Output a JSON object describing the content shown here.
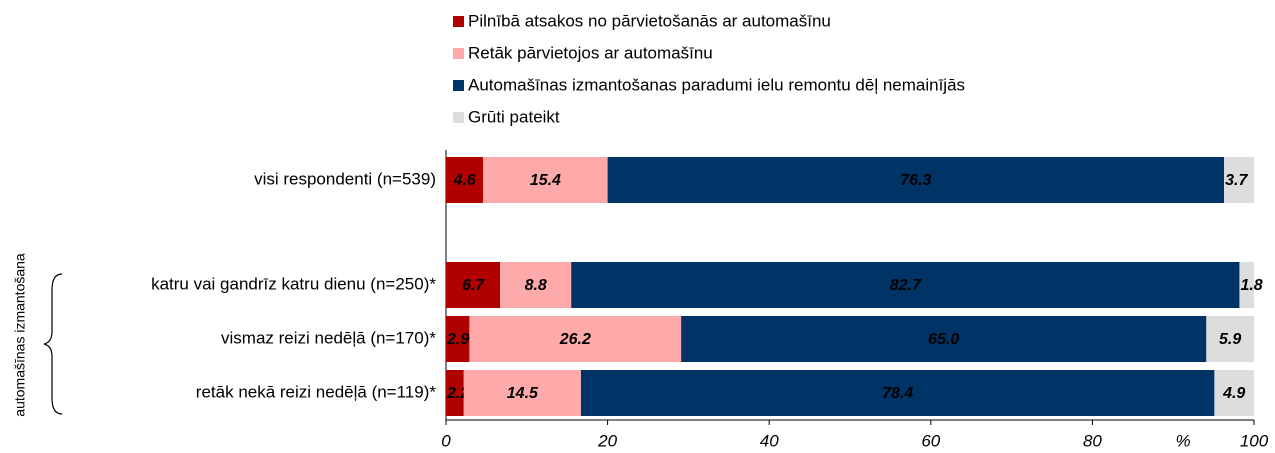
{
  "chart_data": {
    "type": "stacked-barh",
    "categories": [
      "visi respondenti (n=539)",
      "katru vai gandrīz katru dienu (n=250)*",
      "vismaz reizi nedēļā (n=170)*",
      "retāk nekā reizi nedēļā (n=119)*"
    ],
    "series": [
      {
        "name": "Pilnībā atsakos no pārvietošanās ar automašīnu",
        "color": "#b00000",
        "label_color": "#ffffff",
        "values": [
          4.6,
          6.7,
          2.9,
          2.2
        ]
      },
      {
        "name": "Retāk pārvietojos ar automašīnu",
        "color": "#ffaaaa",
        "label_color": "#000000",
        "values": [
          15.4,
          8.8,
          26.2,
          14.5
        ]
      },
      {
        "name": "Automašīnas izmantošanas paradumi ielu remontu dēļ nemainījās",
        "color": "#003366",
        "label_color": "#ffffff",
        "values": [
          76.3,
          82.7,
          65.0,
          78.4
        ],
        "value_labels": [
          "76.3",
          "82.7",
          "65.0",
          "78.4"
        ]
      },
      {
        "name": "Grūti pateikt",
        "color": "#dddddd",
        "label_color": "#000000",
        "values": [
          3.7,
          1.8,
          5.9,
          4.9
        ]
      }
    ],
    "xlim": [
      0,
      100
    ],
    "xticks": [
      0,
      20,
      40,
      60,
      80,
      100
    ],
    "x_label": "%",
    "group_label": "automašīnas izmantošana"
  }
}
